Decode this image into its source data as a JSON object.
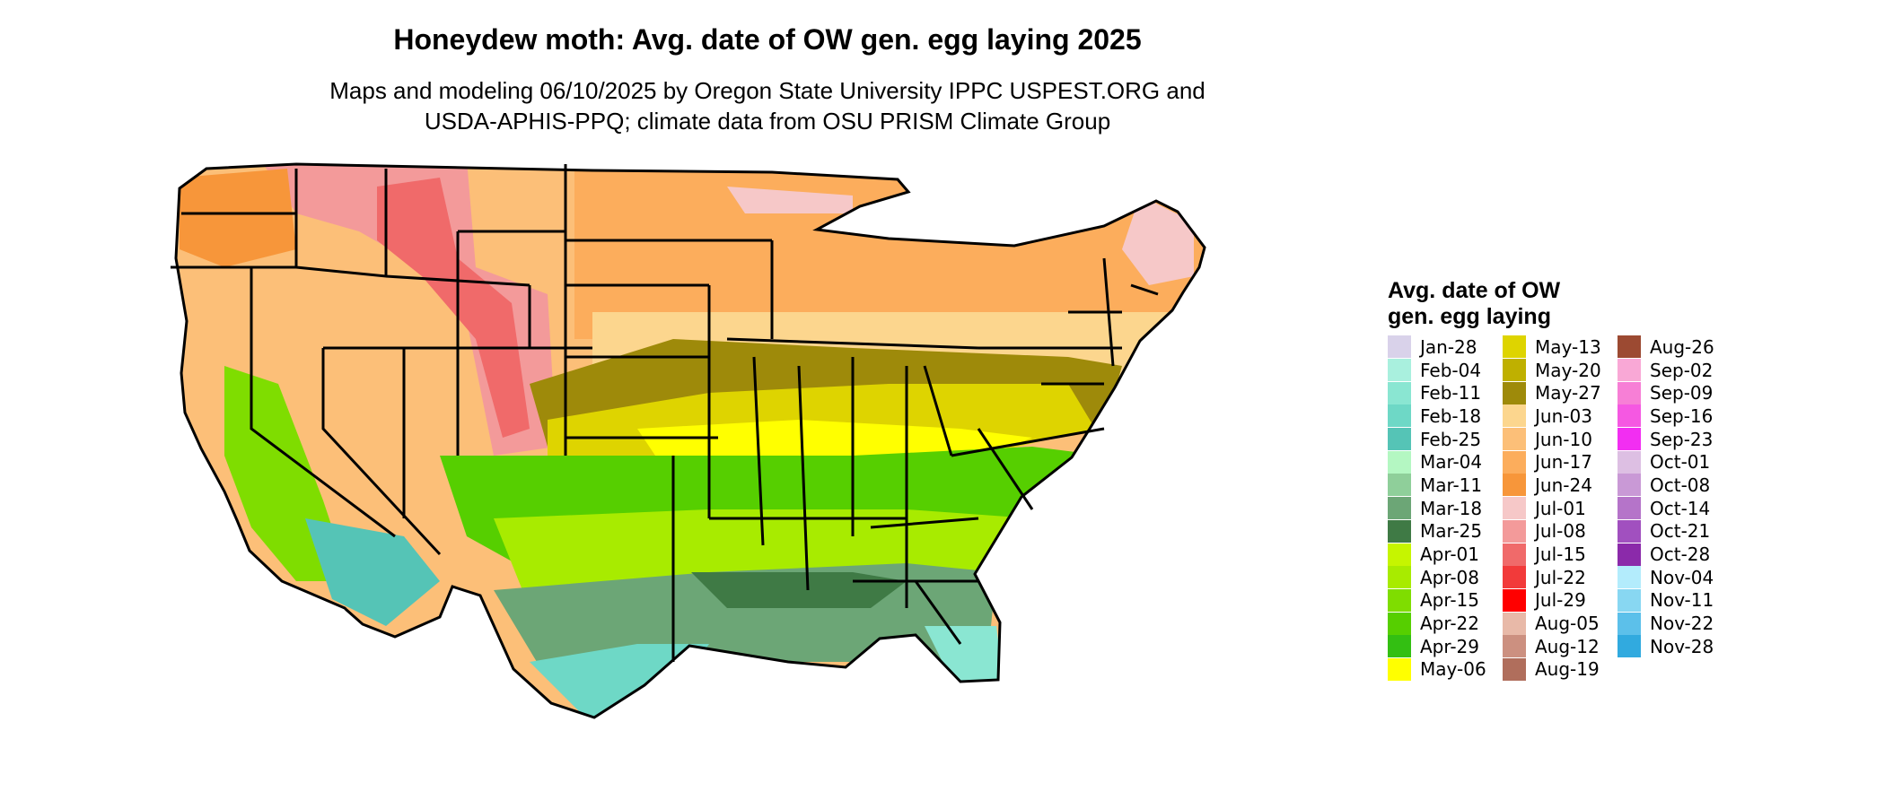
{
  "title": "Honeydew moth: Avg. date of OW gen. egg laying 2025",
  "subtitle_lines": [
    "Maps and modeling 06/10/2025 by Oregon State University IPPC USPEST.ORG and",
    "USDA-APHIS-PPQ; climate data from OSU PRISM Climate Group"
  ],
  "map": {
    "region": "contiguous United States",
    "boundaries": "state outlines in black",
    "fill": "color-coded raster of average date"
  },
  "legend": {
    "title_lines": [
      "Avg. date of OW",
      "gen. egg laying"
    ],
    "columns": [
      [
        {
          "label": "Jan-28",
          "color": "#d9d2ea"
        },
        {
          "label": "Feb-04",
          "color": "#a9f0de"
        },
        {
          "label": "Feb-11",
          "color": "#8ae6d2"
        },
        {
          "label": "Feb-18",
          "color": "#6ed8c6"
        },
        {
          "label": "Feb-25",
          "color": "#55c4b6"
        },
        {
          "label": "Mar-04",
          "color": "#b4f7c2"
        },
        {
          "label": "Mar-11",
          "color": "#8fcf9a"
        },
        {
          "label": "Mar-18",
          "color": "#6ca676"
        },
        {
          "label": "Mar-25",
          "color": "#3f7a45"
        },
        {
          "label": "Apr-01",
          "color": "#c6f500"
        },
        {
          "label": "Apr-08",
          "color": "#a8eb00"
        },
        {
          "label": "Apr-15",
          "color": "#7fdd00"
        },
        {
          "label": "Apr-22",
          "color": "#56cf00"
        },
        {
          "label": "Apr-29",
          "color": "#33bf12"
        },
        {
          "label": "May-06",
          "color": "#ffff00"
        }
      ],
      [
        {
          "label": "May-13",
          "color": "#ded400"
        },
        {
          "label": "May-20",
          "color": "#bfb000"
        },
        {
          "label": "May-27",
          "color": "#9e8a0a"
        },
        {
          "label": "Jun-03",
          "color": "#fcd68e"
        },
        {
          "label": "Jun-10",
          "color": "#fcbf78"
        },
        {
          "label": "Jun-17",
          "color": "#fcad5c"
        },
        {
          "label": "Jun-24",
          "color": "#f7963a"
        },
        {
          "label": "Jul-01",
          "color": "#f6c8c8"
        },
        {
          "label": "Jul-08",
          "color": "#f39a9a"
        },
        {
          "label": "Jul-15",
          "color": "#f06a6a"
        },
        {
          "label": "Jul-22",
          "color": "#f23a3a"
        },
        {
          "label": "Jul-29",
          "color": "#ff0000"
        },
        {
          "label": "Aug-05",
          "color": "#e8b9a8"
        },
        {
          "label": "Aug-12",
          "color": "#cc9080"
        },
        {
          "label": "Aug-19",
          "color": "#b06e5c"
        }
      ],
      [
        {
          "label": "Aug-26",
          "color": "#9c4a32"
        },
        {
          "label": "Sep-02",
          "color": "#f9a8d6"
        },
        {
          "label": "Sep-09",
          "color": "#f77fd6"
        },
        {
          "label": "Sep-16",
          "color": "#f558e2"
        },
        {
          "label": "Sep-23",
          "color": "#f22ef2"
        },
        {
          "label": "Oct-01",
          "color": "#ddbfe3"
        },
        {
          "label": "Oct-08",
          "color": "#c999d6"
        },
        {
          "label": "Oct-14",
          "color": "#b574c9"
        },
        {
          "label": "Oct-21",
          "color": "#a150bf"
        },
        {
          "label": "Oct-28",
          "color": "#8b2aaa"
        },
        {
          "label": "Nov-04",
          "color": "#b3ecfc"
        },
        {
          "label": "Nov-11",
          "color": "#88d7f2"
        },
        {
          "label": "Nov-22",
          "color": "#5cc0ea"
        },
        {
          "label": "Nov-28",
          "color": "#31aadf"
        }
      ]
    ]
  }
}
